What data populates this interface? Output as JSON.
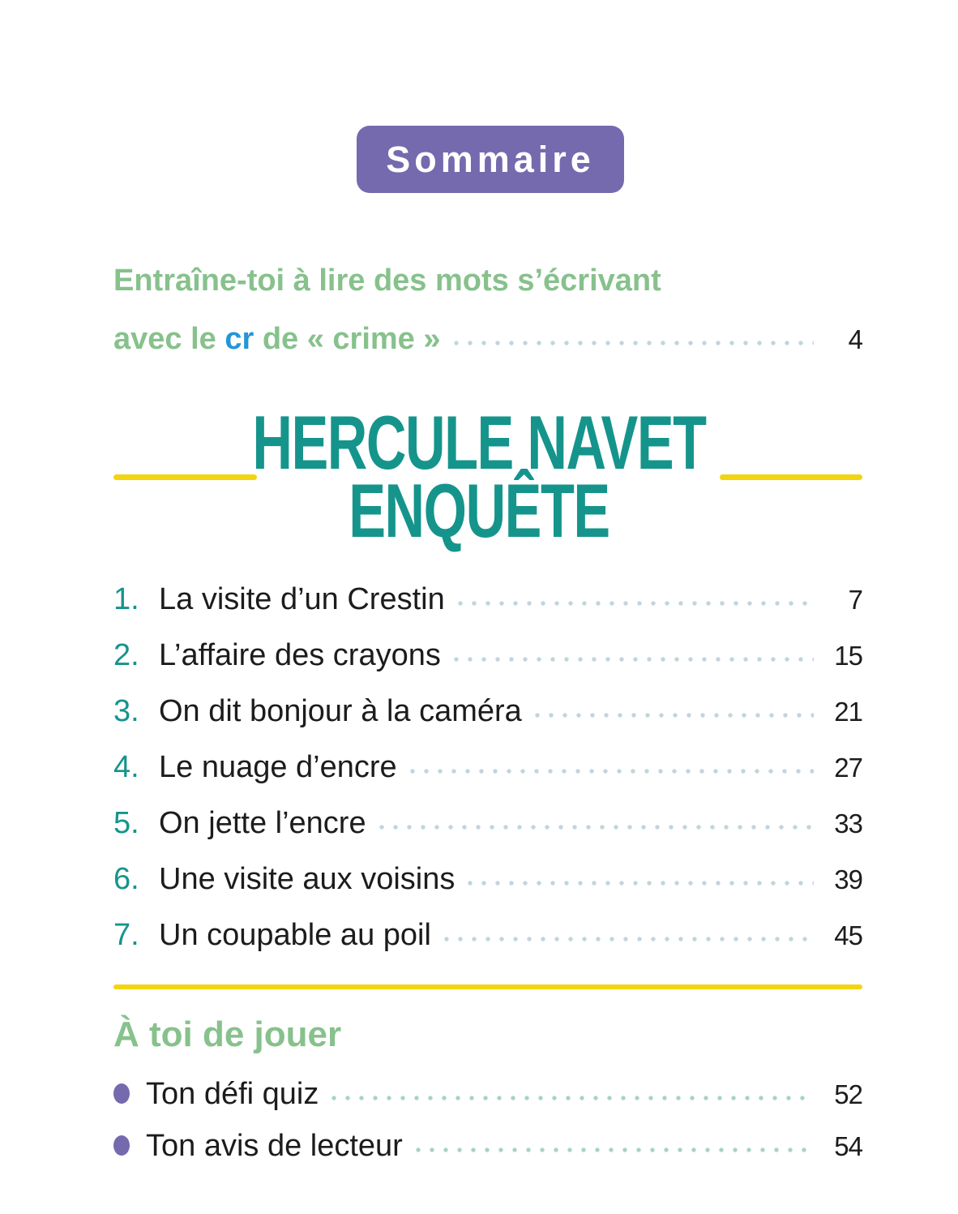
{
  "theme": {
    "purple": "#756aae",
    "teal": "#15948c",
    "green": "#87c18c",
    "blue": "#2496d8",
    "yellow": "#f3d411",
    "ink": "#1c1c1c",
    "dot-blue": "#c2d4dd",
    "dot-green": "#a9d2c6"
  },
  "badge": {
    "label": "Sommaire"
  },
  "intro": {
    "line1": "Entraîne-toi à lire des mots s’écrivant",
    "line2_prefix": "avec le ",
    "line2_highlight": "cr",
    "line2_suffix": " de « crime »",
    "page": "4"
  },
  "section_title": {
    "line1": "HERCULE NAVET",
    "line2": "ENQUÊTE"
  },
  "chapters": [
    {
      "num": "1.",
      "title": "La visite d’un Crestin",
      "page": "7"
    },
    {
      "num": "2.",
      "title": "L’affaire des crayons",
      "page": "15"
    },
    {
      "num": "3.",
      "title": "On dit bonjour à la caméra",
      "page": "21"
    },
    {
      "num": "4.",
      "title": "Le nuage d’encre",
      "page": "27"
    },
    {
      "num": "5.",
      "title": "On jette l’encre",
      "page": "33"
    },
    {
      "num": "6.",
      "title": "Une visite aux voisins",
      "page": "39"
    },
    {
      "num": "7.",
      "title": "Un coupable au poil",
      "page": "45"
    }
  ],
  "footer": {
    "heading": "À toi de jouer",
    "items": [
      {
        "title": "Ton défi quiz",
        "page": "52"
      },
      {
        "title": "Ton avis de lecteur",
        "page": "54"
      }
    ]
  }
}
